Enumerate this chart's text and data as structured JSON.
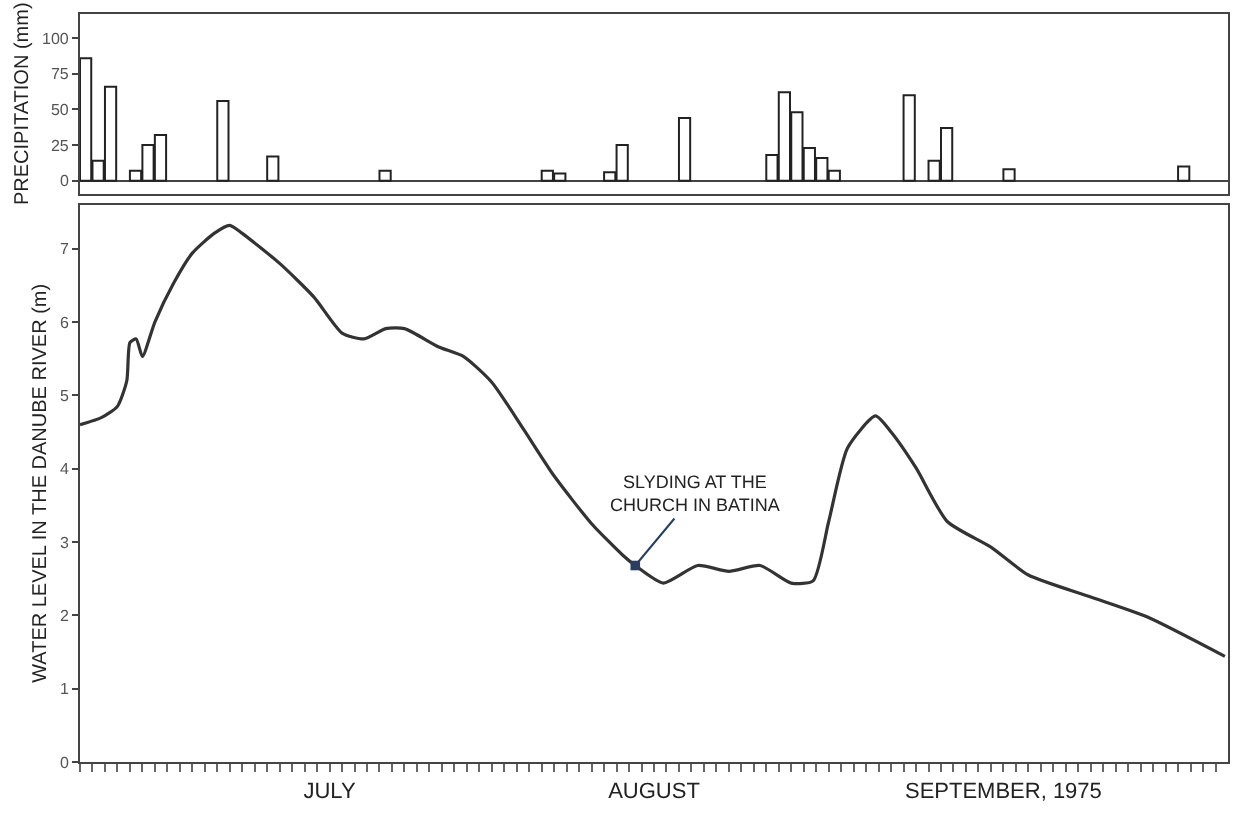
{
  "chart_data": [
    {
      "type": "bar",
      "ylabel": "PRECIPITATION (mm)",
      "x": [
        "1975-07-01",
        "1975-07-02",
        "1975-07-03",
        "1975-07-05",
        "1975-07-06",
        "1975-07-07",
        "1975-07-12",
        "1975-07-16",
        "1975-07-25",
        "1975-08-07",
        "1975-08-08",
        "1975-08-12",
        "1975-08-13",
        "1975-08-18",
        "1975-08-25",
        "1975-08-26",
        "1975-08-27",
        "1975-08-28",
        "1975-08-29",
        "1975-08-30",
        "1975-09-05",
        "1975-09-07",
        "1975-09-08",
        "1975-09-13",
        "1975-09-27"
      ],
      "values": [
        86,
        14,
        66,
        7,
        25,
        32,
        56,
        17,
        7,
        7,
        5,
        6,
        25,
        44,
        18,
        62,
        48,
        23,
        16,
        7,
        60,
        14,
        37,
        8,
        10
      ],
      "color": "#ffffff",
      "xlim": [
        "1975-07-01",
        "1975-10-01"
      ],
      "ylim": [
        -9,
        117
      ],
      "yticks": [
        0,
        25,
        50,
        75,
        100
      ],
      "tick_labels": "y"
    },
    {
      "type": "line",
      "ylabel": "WATER LEVEL IN THE DANUBE RIVER (m)",
      "x": [
        "1975-07-01T00:00",
        "1975-07-02T18:00",
        "1975-07-04T00:00",
        "1975-07-04T18:00",
        "1975-07-05T00:00",
        "1975-07-05T12:00",
        "1975-07-06T00:00",
        "1975-07-07T00:00",
        "1975-07-08T12:00",
        "1975-07-10T00:00",
        "1975-07-11T18:00",
        "1975-07-13T00:00",
        "1975-07-14T00:00",
        "1975-07-17T00:00",
        "1975-07-19T18:00",
        "1975-07-22T00:00",
        "1975-07-23T18:00",
        "1975-07-25T12:00",
        "1975-07-27T00:00",
        "1975-07-29T18:00",
        "1975-07-31T18:00",
        "1975-08-03T00:00",
        "1975-08-05T12:00",
        "1975-08-08T00:00",
        "1975-08-11T00:00",
        "1975-08-13T12:00",
        "1975-08-14T12:00",
        "1975-08-16T18:00",
        "1975-08-19T12:00",
        "1975-08-22T00:00",
        "1975-08-24T12:00",
        "1975-08-27T00:00",
        "1975-08-28T18:00",
        "1975-08-30T00:00",
        "1975-08-31T12:00",
        "1975-09-02T18:00",
        "1975-09-04T00:00",
        "1975-09-06T00:00",
        "1975-09-08T12:00",
        "1975-09-12T00:00",
        "1975-09-15T00:00",
        "1975-09-20T00:00",
        "1975-09-24T12:00",
        "1975-09-30T18:00"
      ],
      "values": [
        4.6,
        4.7,
        4.85,
        5.2,
        5.72,
        5.77,
        5.53,
        6.0,
        6.53,
        6.94,
        7.21,
        7.32,
        7.21,
        6.8,
        6.34,
        5.85,
        5.77,
        5.91,
        5.91,
        5.66,
        5.53,
        5.18,
        4.55,
        3.9,
        3.25,
        2.82,
        2.68,
        2.44,
        2.68,
        2.6,
        2.68,
        2.44,
        2.47,
        3.28,
        4.28,
        4.72,
        4.5,
        4.01,
        3.28,
        2.93,
        2.55,
        2.25,
        1.98,
        1.44
      ],
      "color": "#333333",
      "marker": "none",
      "annotations": [
        {
          "text": "SLYDING AT THE\nCHURCH IN BATINA",
          "x": "1975-08-14T12:00",
          "y": 2.68
        }
      ],
      "xlim": [
        "1975-07-01",
        "1975-10-01"
      ],
      "ylim": [
        0,
        7.6
      ],
      "yticks": [
        0,
        1,
        2,
        3,
        4,
        5,
        6,
        7
      ],
      "xticks": [
        {
          "value": "1975-07-01",
          "label": null
        },
        {
          "value": "1975-07-02",
          "label": null
        },
        {
          "value": "1975-07-03",
          "label": null
        },
        {
          "value": "1975-07-04",
          "label": null
        },
        {
          "value": "1975-07-05",
          "label": null
        },
        {
          "value": "1975-07-06",
          "label": null
        },
        {
          "value": "1975-07-07",
          "label": null
        },
        {
          "value": "1975-07-08",
          "label": null
        },
        {
          "value": "1975-07-09",
          "label": null
        },
        {
          "value": "1975-07-10",
          "label": null
        },
        {
          "value": "1975-07-11",
          "label": null
        },
        {
          "value": "1975-07-12",
          "label": null
        },
        {
          "value": "1975-07-13",
          "label": null
        },
        {
          "value": "1975-07-14",
          "label": null
        },
        {
          "value": "1975-07-15",
          "label": null
        },
        {
          "value": "1975-07-16",
          "label": null
        },
        {
          "value": "1975-07-17",
          "label": null
        },
        {
          "value": "1975-07-18",
          "label": null
        },
        {
          "value": "1975-07-19",
          "label": null
        },
        {
          "value": "1975-07-20",
          "label": null
        },
        {
          "value": "1975-07-21",
          "label": "JULY"
        },
        {
          "value": "1975-07-22",
          "label": null
        },
        {
          "value": "1975-07-23",
          "label": null
        },
        {
          "value": "1975-07-24",
          "label": null
        },
        {
          "value": "1975-07-25",
          "label": null
        },
        {
          "value": "1975-07-26",
          "label": null
        },
        {
          "value": "1975-07-27",
          "label": null
        },
        {
          "value": "1975-07-28",
          "label": null
        },
        {
          "value": "1975-07-29",
          "label": null
        },
        {
          "value": "1975-07-30",
          "label": null
        },
        {
          "value": "1975-07-31",
          "label": null
        },
        {
          "value": "1975-08-01",
          "label": null
        },
        {
          "value": "1975-08-02",
          "label": null
        },
        {
          "value": "1975-08-03",
          "label": null
        },
        {
          "value": "1975-08-04",
          "label": null
        },
        {
          "value": "1975-08-05",
          "label": null
        },
        {
          "value": "1975-08-06",
          "label": null
        },
        {
          "value": "1975-08-07",
          "label": null
        },
        {
          "value": "1975-08-08",
          "label": null
        },
        {
          "value": "1975-08-09",
          "label": null
        },
        {
          "value": "1975-08-10",
          "label": null
        },
        {
          "value": "1975-08-11",
          "label": null
        },
        {
          "value": "1975-08-12",
          "label": null
        },
        {
          "value": "1975-08-13",
          "label": null
        },
        {
          "value": "1975-08-14",
          "label": null
        },
        {
          "value": "1975-08-15",
          "label": null
        },
        {
          "value": "1975-08-16",
          "label": "AUGUST"
        },
        {
          "value": "1975-08-17",
          "label": null
        },
        {
          "value": "1975-08-18",
          "label": null
        },
        {
          "value": "1975-08-19",
          "label": null
        },
        {
          "value": "1975-08-20",
          "label": null
        },
        {
          "value": "1975-08-21",
          "label": null
        },
        {
          "value": "1975-08-22",
          "label": null
        },
        {
          "value": "1975-08-23",
          "label": null
        },
        {
          "value": "1975-08-24",
          "label": null
        },
        {
          "value": "1975-08-25",
          "label": null
        },
        {
          "value": "1975-08-26",
          "label": null
        },
        {
          "value": "1975-08-27",
          "label": null
        },
        {
          "value": "1975-08-28",
          "label": null
        },
        {
          "value": "1975-08-29",
          "label": null
        },
        {
          "value": "1975-08-30",
          "label": null
        },
        {
          "value": "1975-08-31",
          "label": null
        },
        {
          "value": "1975-09-01",
          "label": null
        },
        {
          "value": "1975-09-02",
          "label": null
        },
        {
          "value": "1975-09-03",
          "label": null
        },
        {
          "value": "1975-09-04",
          "label": null
        },
        {
          "value": "1975-09-05",
          "label": null
        },
        {
          "value": "1975-09-06",
          "label": null
        },
        {
          "value": "1975-09-07",
          "label": null
        },
        {
          "value": "1975-09-08",
          "label": null
        },
        {
          "value": "1975-09-09",
          "label": null
        },
        {
          "value": "1975-09-10",
          "label": null
        },
        {
          "value": "1975-09-11",
          "label": null
        },
        {
          "value": "1975-09-12",
          "label": null
        },
        {
          "value": "1975-09-13",
          "label": "SEPTEMBER, 1975"
        },
        {
          "value": "1975-09-14",
          "label": null
        },
        {
          "value": "1975-09-15",
          "label": null
        },
        {
          "value": "1975-09-16",
          "label": null
        },
        {
          "value": "1975-09-17",
          "label": null
        },
        {
          "value": "1975-09-18",
          "label": null
        },
        {
          "value": "1975-09-19",
          "label": null
        },
        {
          "value": "1975-09-20",
          "label": null
        },
        {
          "value": "1975-09-21",
          "label": null
        },
        {
          "value": "1975-09-22",
          "label": null
        },
        {
          "value": "1975-09-23",
          "label": null
        },
        {
          "value": "1975-09-24",
          "label": null
        },
        {
          "value": "1975-09-25",
          "label": null
        },
        {
          "value": "1975-09-26",
          "label": null
        },
        {
          "value": "1975-09-27",
          "label": null
        },
        {
          "value": "1975-09-28",
          "label": null
        },
        {
          "value": "1975-09-29",
          "label": null
        },
        {
          "value": "1975-09-30",
          "label": null
        }
      ],
      "line_style": "solid"
    }
  ]
}
